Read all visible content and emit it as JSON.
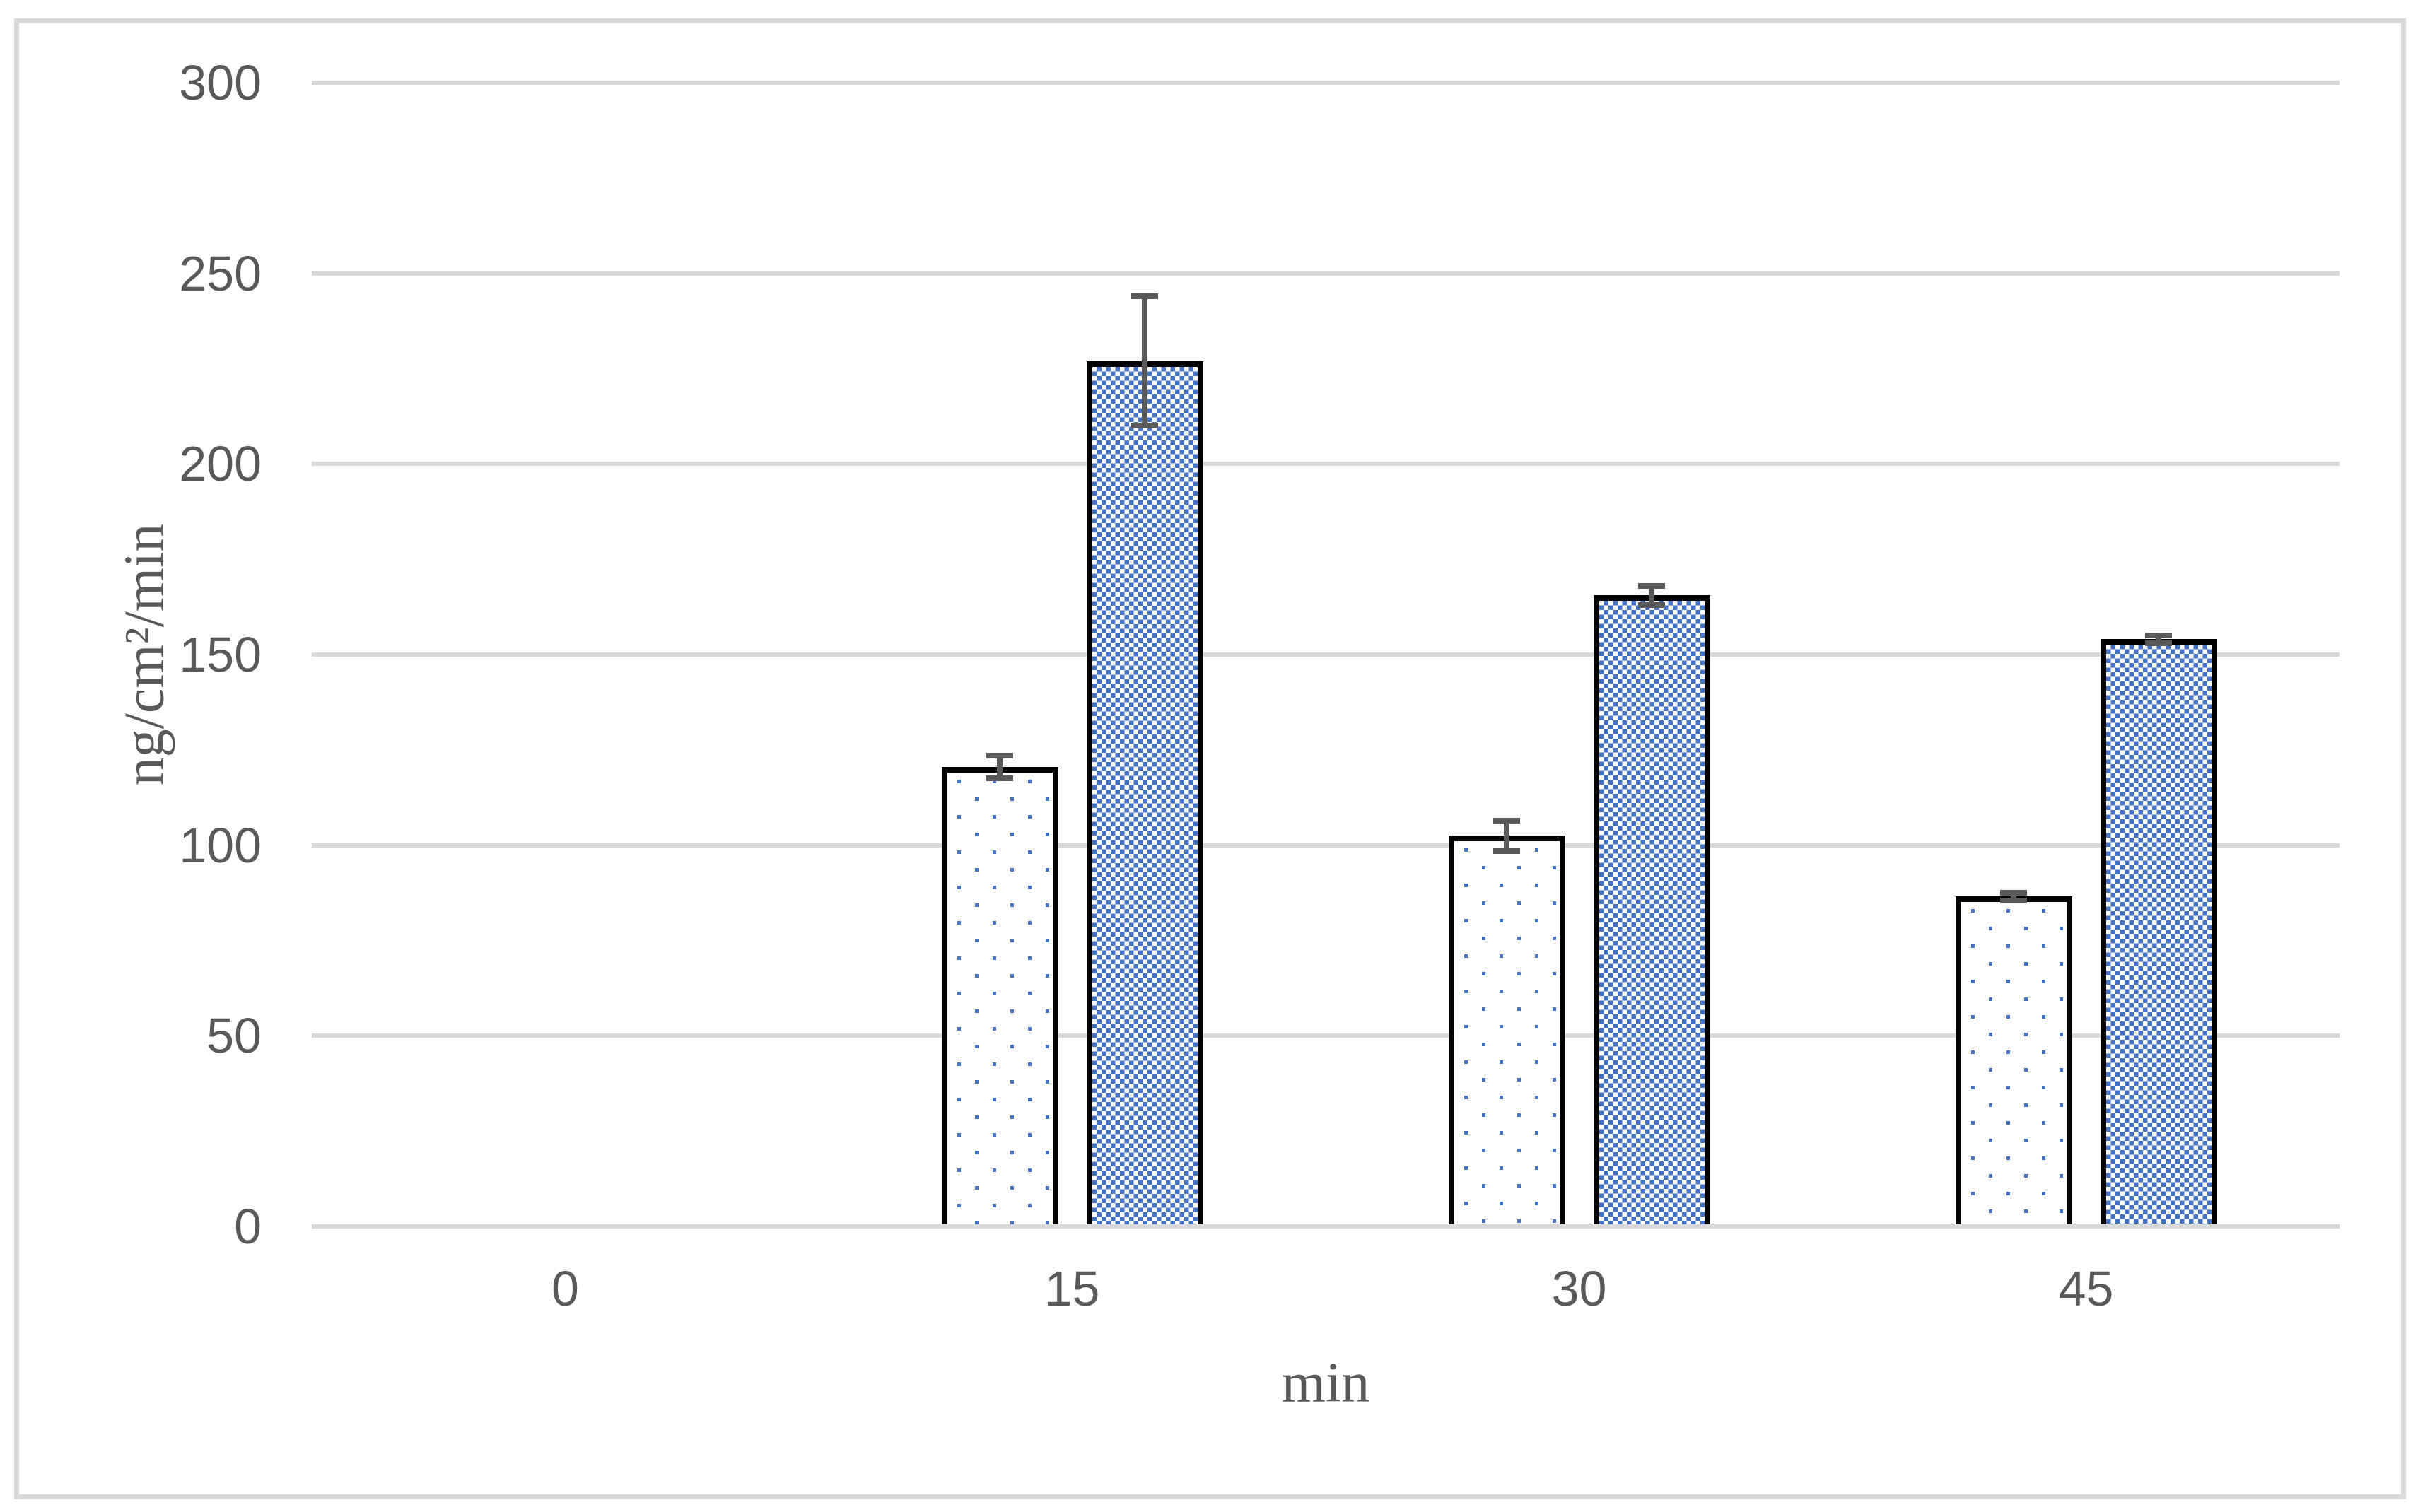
{
  "chart_data": {
    "type": "bar",
    "title": "",
    "xlabel": "min",
    "ylabel": "ng/cm²/min",
    "categories": [
      "0",
      "15",
      "30",
      "45"
    ],
    "x_tick_labels": [
      "0",
      "15",
      "30",
      "45"
    ],
    "y_tick_labels": [
      "0",
      "50",
      "100",
      "150",
      "200",
      "250",
      "300"
    ],
    "ylim": [
      0,
      300
    ],
    "ytick_step": 50,
    "grid": true,
    "legend": "none",
    "series": [
      {
        "name": "series-1-dotted",
        "pattern": "dotted",
        "values": [
          0,
          120.5,
          102.5,
          86.5
        ],
        "errors": [
          0,
          3,
          4,
          1
        ]
      },
      {
        "name": "series-2-checkered",
        "pattern": "checkered",
        "values": [
          0,
          227,
          165.5,
          154
        ],
        "errors": [
          0,
          17,
          2.5,
          1
        ]
      }
    ],
    "colors": {
      "accent_blue": "#4472c4",
      "gridline_gray": "#d9d9d9",
      "frame_gray": "#d9d9d9",
      "text_gray": "#595959",
      "error_bar_gray": "#595959",
      "bar_outline": "#000000",
      "background": "#ffffff"
    }
  }
}
